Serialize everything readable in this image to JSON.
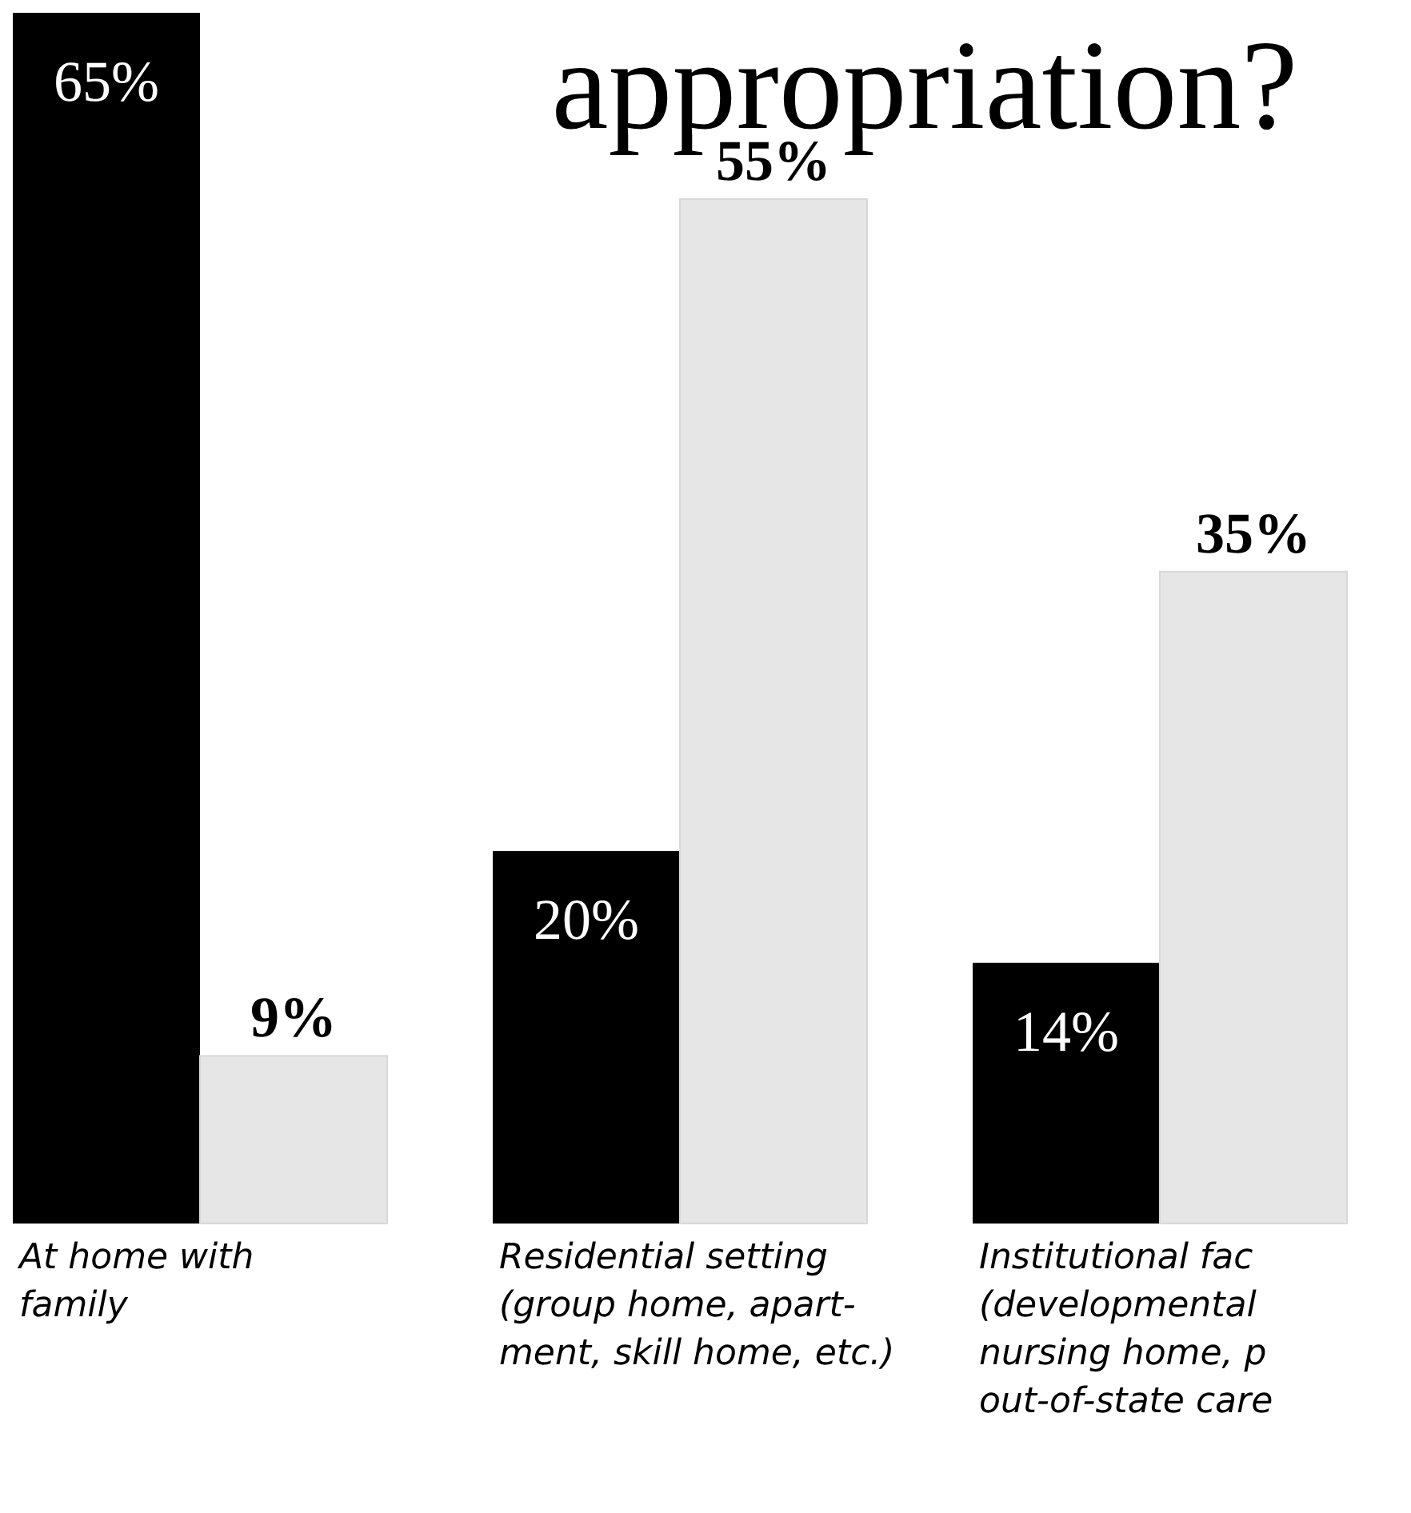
{
  "chart_data": {
    "type": "bar",
    "title": "appropriation?",
    "categories": [
      "At home with\nfamily",
      "Residential setting\n(group home, apart-\nment, skill home, etc.)",
      "Institutional fac\n(developmental \nnursing home, p\nout-of-state care"
    ],
    "series": [
      {
        "color": "#000000",
        "values": [
          65,
          20,
          14
        ],
        "value_labels": [
          "65%",
          "20%",
          "14%"
        ]
      },
      {
        "color": "#e6e6e6",
        "values": [
          9,
          55,
          35
        ],
        "value_labels": [
          "9%",
          "55%",
          "35%"
        ]
      }
    ]
  }
}
